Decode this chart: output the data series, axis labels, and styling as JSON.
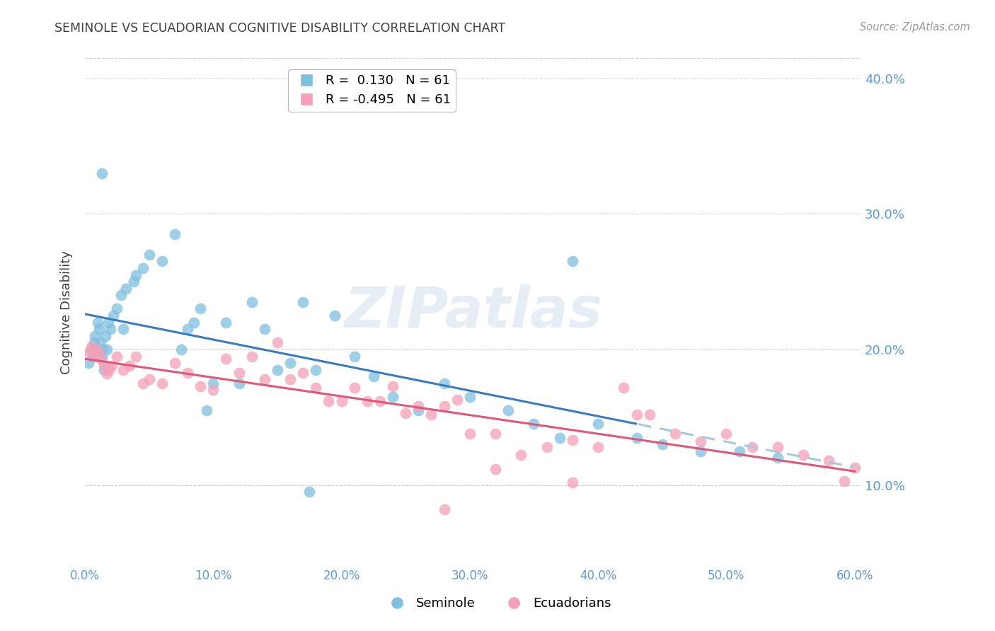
{
  "title": "SEMINOLE VS ECUADORIAN COGNITIVE DISABILITY CORRELATION CHART",
  "source": "Source: ZipAtlas.com",
  "ylabel": "Cognitive Disability",
  "legend_labels": [
    "Seminole",
    "Ecuadorians"
  ],
  "legend_r_blue": "R =  0.130",
  "legend_r_pink": "R = -0.495",
  "legend_n": "N = 61",
  "blue_color": "#7fbfdf",
  "pink_color": "#f4a0b8",
  "blue_line_color": "#3a7abf",
  "pink_line_color": "#e05878",
  "dashed_line_color": "#a8c8e0",
  "watermark": "ZIPatlas",
  "xlim": [
    0.0,
    0.605
  ],
  "ylim": [
    0.04,
    0.415
  ],
  "xtick_vals": [
    0.0,
    0.1,
    0.2,
    0.3,
    0.4,
    0.5,
    0.6
  ],
  "ytick_vals": [
    0.1,
    0.2,
    0.3,
    0.4
  ],
  "background_color": "#ffffff",
  "grid_color": "#d0d0d0",
  "title_color": "#404040",
  "axis_label_color": "#404040",
  "tick_label_color": "#5b9bd5",
  "blue_x": [
    0.003,
    0.005,
    0.006,
    0.007,
    0.008,
    0.009,
    0.01,
    0.01,
    0.011,
    0.012,
    0.013,
    0.014,
    0.015,
    0.016,
    0.017,
    0.018,
    0.02,
    0.022,
    0.025,
    0.028,
    0.03,
    0.032,
    0.038,
    0.04,
    0.045,
    0.05,
    0.06,
    0.07,
    0.075,
    0.08,
    0.085,
    0.09,
    0.095,
    0.1,
    0.11,
    0.12,
    0.13,
    0.14,
    0.15,
    0.16,
    0.17,
    0.175,
    0.18,
    0.195,
    0.21,
    0.225,
    0.24,
    0.26,
    0.28,
    0.3,
    0.33,
    0.35,
    0.37,
    0.4,
    0.43,
    0.45,
    0.48,
    0.51,
    0.54,
    0.38,
    0.013
  ],
  "blue_y": [
    0.19,
    0.2,
    0.195,
    0.205,
    0.21,
    0.195,
    0.2,
    0.22,
    0.215,
    0.205,
    0.195,
    0.2,
    0.185,
    0.21,
    0.2,
    0.22,
    0.215,
    0.225,
    0.23,
    0.24,
    0.215,
    0.245,
    0.25,
    0.255,
    0.26,
    0.27,
    0.265,
    0.285,
    0.2,
    0.215,
    0.22,
    0.23,
    0.155,
    0.175,
    0.22,
    0.175,
    0.235,
    0.215,
    0.185,
    0.19,
    0.235,
    0.095,
    0.185,
    0.225,
    0.195,
    0.18,
    0.165,
    0.155,
    0.175,
    0.165,
    0.155,
    0.145,
    0.135,
    0.145,
    0.135,
    0.13,
    0.125,
    0.125,
    0.12,
    0.265,
    0.33
  ],
  "pink_x": [
    0.003,
    0.005,
    0.007,
    0.009,
    0.011,
    0.013,
    0.015,
    0.017,
    0.019,
    0.021,
    0.025,
    0.03,
    0.035,
    0.04,
    0.045,
    0.05,
    0.06,
    0.07,
    0.08,
    0.09,
    0.1,
    0.11,
    0.12,
    0.13,
    0.14,
    0.15,
    0.16,
    0.17,
    0.18,
    0.19,
    0.2,
    0.21,
    0.22,
    0.23,
    0.24,
    0.25,
    0.26,
    0.27,
    0.28,
    0.29,
    0.3,
    0.32,
    0.34,
    0.36,
    0.38,
    0.4,
    0.42,
    0.44,
    0.46,
    0.48,
    0.5,
    0.52,
    0.54,
    0.56,
    0.58,
    0.6,
    0.43,
    0.38,
    0.32,
    0.28,
    0.592
  ],
  "pink_y": [
    0.198,
    0.202,
    0.195,
    0.2,
    0.198,
    0.192,
    0.188,
    0.182,
    0.185,
    0.188,
    0.195,
    0.185,
    0.188,
    0.195,
    0.175,
    0.178,
    0.175,
    0.19,
    0.183,
    0.173,
    0.17,
    0.193,
    0.183,
    0.195,
    0.178,
    0.205,
    0.178,
    0.183,
    0.172,
    0.162,
    0.162,
    0.172,
    0.162,
    0.162,
    0.173,
    0.153,
    0.158,
    0.152,
    0.158,
    0.163,
    0.138,
    0.138,
    0.122,
    0.128,
    0.133,
    0.128,
    0.172,
    0.152,
    0.138,
    0.132,
    0.138,
    0.128,
    0.128,
    0.122,
    0.118,
    0.113,
    0.152,
    0.102,
    0.112,
    0.082,
    0.103
  ]
}
